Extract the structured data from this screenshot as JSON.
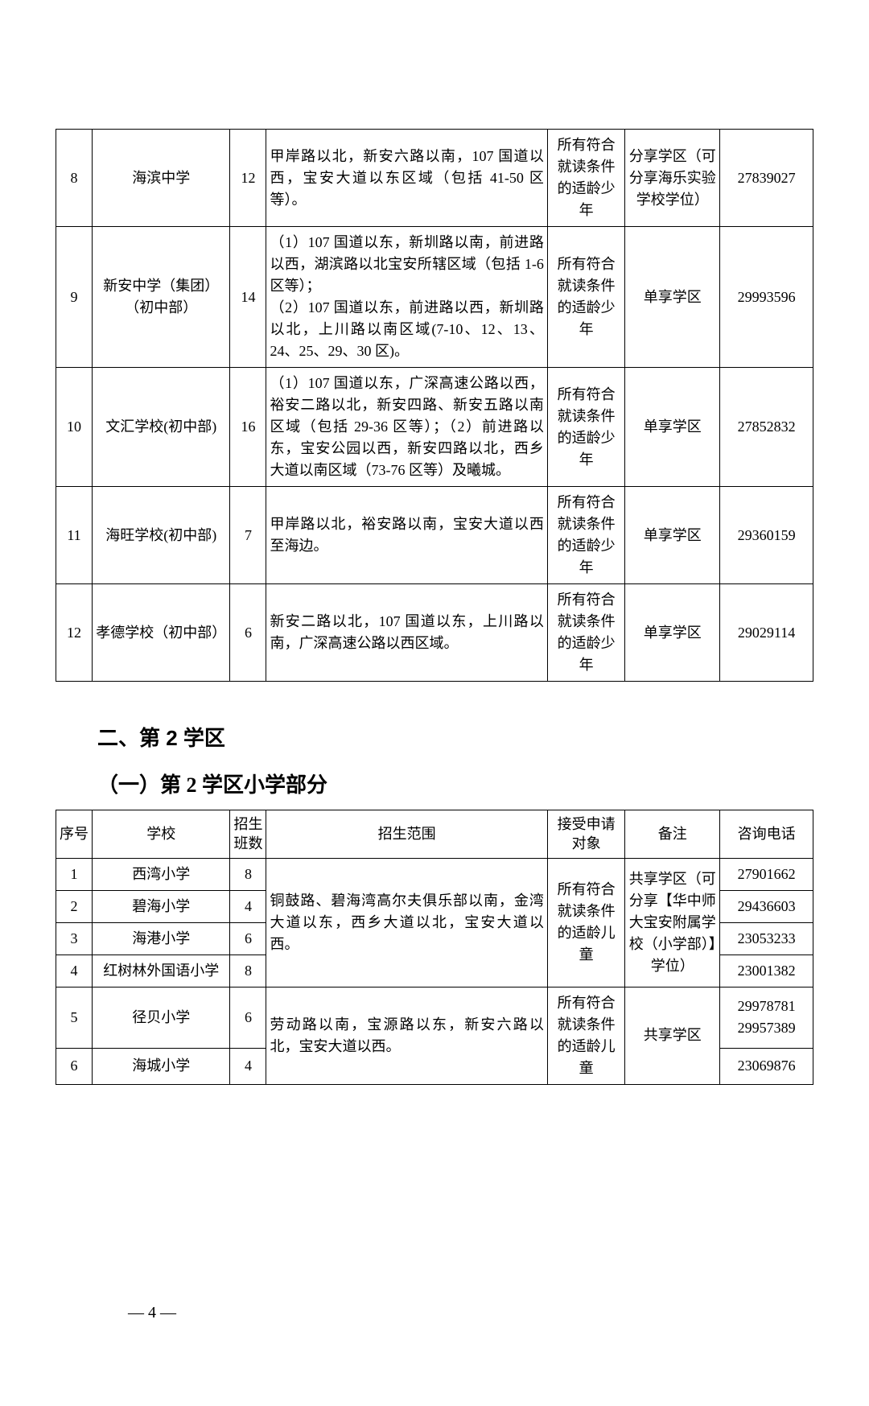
{
  "table1": {
    "rows": [
      {
        "seq": "8",
        "school": "海滨中学",
        "classes": "12",
        "range": "甲岸路以北，新安六路以南，107 国道以西，宝安大道以东区域（包括 41-50 区等）。",
        "target": "所有符合就读条件的适龄少年",
        "remark": "分享学区（可分享海乐实验学校学位）",
        "phone": "27839027"
      },
      {
        "seq": "9",
        "school": "新安中学（集团）（初中部）",
        "classes": "14",
        "range": "（1）107 国道以东，新圳路以南，前进路以西，湖滨路以北宝安所辖区域（包括 1-6 区等）；\n（2）107 国道以东，前进路以西，新圳路以北，上川路以南区域(7-10、12、13、24、25、29、30 区)。",
        "target": "所有符合就读条件的适龄少年",
        "remark": "单享学区",
        "phone": "29993596"
      },
      {
        "seq": "10",
        "school": "文汇学校(初中部)",
        "classes": "16",
        "range": "（1）107 国道以东，广深高速公路以西，裕安二路以北，新安四路、新安五路以南区域（包括 29-36 区等）；（2）前进路以东，宝安公园以西，新安四路以北，西乡大道以南区域（73-76 区等）及曦城。",
        "target": "所有符合就读条件的适龄少年",
        "remark": "单享学区",
        "phone": "27852832"
      },
      {
        "seq": "11",
        "school": "海旺学校(初中部)",
        "classes": "7",
        "range": "甲岸路以北，裕安路以南，宝安大道以西至海边。",
        "target": "所有符合就读条件的适龄少年",
        "remark": "单享学区",
        "phone": "29360159"
      },
      {
        "seq": "12",
        "school": "孝德学校（初中部）",
        "classes": "6",
        "range": "新安二路以北，107 国道以东，上川路以南，广深高速公路以西区域。",
        "target": "所有符合就读条件的适龄少年",
        "remark": "单享学区",
        "phone": "29029114"
      }
    ]
  },
  "section2": {
    "heading": "二、第 2 学区",
    "subheading": "（一）第 2 学区小学部分"
  },
  "table2": {
    "headers": {
      "seq": "序号",
      "school": "学校",
      "classes": "招生班数",
      "range": "招生范围",
      "target": "接受申请对象",
      "remark": "备注",
      "phone": "咨询电话"
    },
    "group1": {
      "range": "铜鼓路、碧海湾高尔夫俱乐部以南，金湾大道以东，西乡大道以北，宝安大道以西。",
      "target": "所有符合就读条件的适龄儿童",
      "remark": "共享学区（可分享【华中师大宝安附属学校（小学部）】学位）",
      "rows": [
        {
          "seq": "1",
          "school": "西湾小学",
          "classes": "8",
          "phone": "27901662"
        },
        {
          "seq": "2",
          "school": "碧海小学",
          "classes": "4",
          "phone": "29436603"
        },
        {
          "seq": "3",
          "school": "海港小学",
          "classes": "6",
          "phone": "23053233"
        },
        {
          "seq": "4",
          "school": "红树林外国语小学",
          "classes": "8",
          "phone": "23001382"
        }
      ]
    },
    "group2": {
      "range": "劳动路以南，宝源路以东，新安六路以北，宝安大道以西。",
      "target": "所有符合就读条件的适龄儿童",
      "remark": "共享学区",
      "rows": [
        {
          "seq": "5",
          "school": "径贝小学",
          "classes": "6",
          "phone": "29978781\n29957389"
        },
        {
          "seq": "6",
          "school": "海城小学",
          "classes": "4",
          "phone": "23069876"
        }
      ]
    }
  },
  "pageNumber": "— 4 —"
}
